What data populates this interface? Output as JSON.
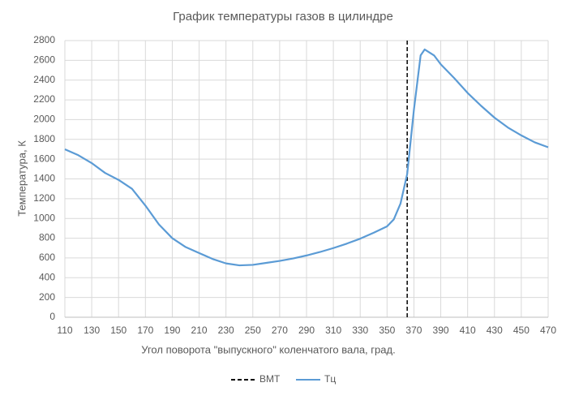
{
  "chart_data": {
    "type": "line",
    "title": "График температуры газов в цилиндре",
    "x_label": "Угол поворота \"выпускного\" коленчатого вала, град.",
    "y_label": "Температура, К",
    "xlim": [
      110,
      470
    ],
    "xticks": [
      110,
      130,
      150,
      170,
      190,
      210,
      230,
      250,
      270,
      290,
      310,
      330,
      350,
      370,
      390,
      410,
      430,
      450,
      470
    ],
    "ylim": [
      0,
      2800
    ],
    "yticks": [
      0,
      200,
      400,
      600,
      800,
      1000,
      1200,
      1400,
      1600,
      1800,
      2000,
      2200,
      2400,
      2600,
      2800
    ],
    "grid": true,
    "legend": "bottom",
    "series": [
      {
        "name": "ВМТ",
        "color": "#000000",
        "style": "dashed",
        "x": [
          365,
          365
        ],
        "values": [
          0,
          2800
        ]
      },
      {
        "name": "Тц",
        "color": "#5b9bd5",
        "style": "solid",
        "x": [
          110,
          120,
          130,
          140,
          150,
          160,
          170,
          180,
          190,
          200,
          210,
          220,
          230,
          240,
          250,
          260,
          270,
          280,
          290,
          300,
          310,
          320,
          330,
          340,
          350,
          355,
          360,
          365,
          370,
          375,
          378,
          385,
          390,
          400,
          410,
          420,
          430,
          440,
          450,
          460,
          470
        ],
        "values": [
          1700,
          1640,
          1560,
          1460,
          1390,
          1300,
          1130,
          940,
          800,
          710,
          650,
          590,
          545,
          525,
          530,
          550,
          570,
          595,
          625,
          660,
          700,
          745,
          795,
          855,
          920,
          990,
          1150,
          1450,
          2100,
          2650,
          2710,
          2650,
          2560,
          2420,
          2270,
          2140,
          2020,
          1920,
          1840,
          1770,
          1720
        ]
      }
    ]
  }
}
